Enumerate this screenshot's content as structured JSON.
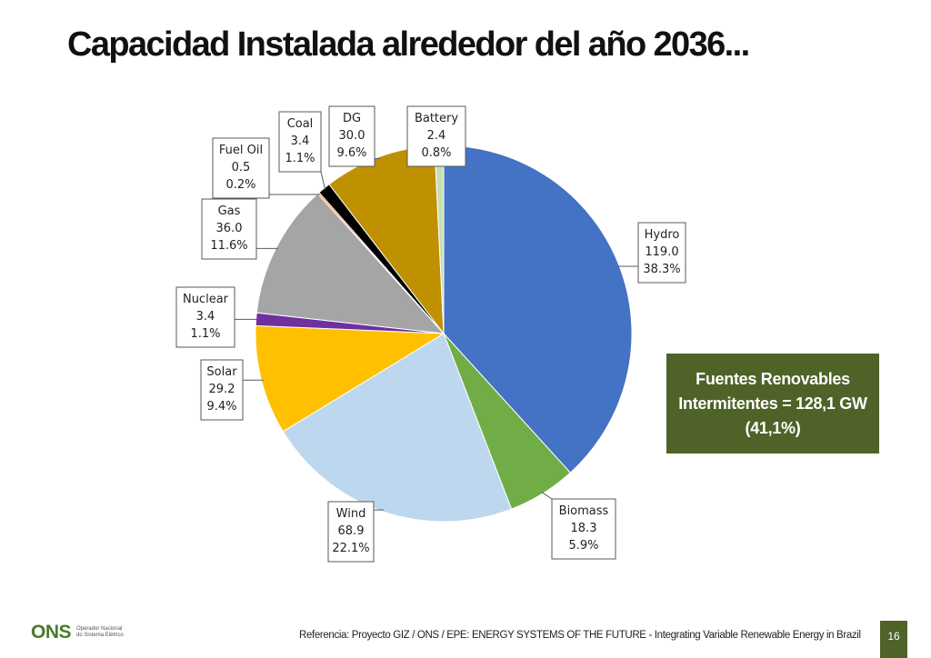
{
  "title": "Capacidad Instalada alrededor del año 2036...",
  "callout": {
    "line1": "Fuentes Renovables",
    "line2": "Intermitentes =  128,1 GW",
    "line3": "(41,1%)"
  },
  "footer": {
    "logo_text": "ONS",
    "logo_sub_1": "Operador Nacional",
    "logo_sub_2": "do Sistema Elétrico",
    "reference": "Referencia: Proyecto GIZ / ONS / EPE: ENERGY SYSTEMS OF THE FUTURE - Integrating Variable Renewable Energy in Brazil",
    "page_number": "16"
  },
  "chart_data": {
    "type": "pie",
    "title": "",
    "start_angle_deg": 0,
    "direction": "clockwise",
    "slices": [
      {
        "name": "Hydro",
        "value": 119.0,
        "percent": "38.3%",
        "value_label": "119.0",
        "color": "#4472c4"
      },
      {
        "name": "Biomass",
        "value": 18.3,
        "percent": "5.9%",
        "value_label": "18.3",
        "color": "#70ad47"
      },
      {
        "name": "Wind",
        "value": 68.9,
        "percent": "22.1%",
        "value_label": "68.9",
        "color": "#bdd7ee"
      },
      {
        "name": "Solar",
        "value": 29.2,
        "percent": "9.4%",
        "value_label": "29.2",
        "color": "#ffc000"
      },
      {
        "name": "Nuclear",
        "value": 3.4,
        "percent": "1.1%",
        "value_label": "3.4",
        "color": "#7030a0"
      },
      {
        "name": "Gas",
        "value": 36.0,
        "percent": "11.6%",
        "value_label": "36.0",
        "color": "#a5a5a5"
      },
      {
        "name": "Fuel Oil",
        "value": 0.5,
        "percent": "0.2%",
        "value_label": "0.5",
        "color": "#ed7d31"
      },
      {
        "name": "Coal",
        "value": 3.4,
        "percent": "1.1%",
        "value_label": "3.4",
        "color": "#000000"
      },
      {
        "name": "DG",
        "value": 30.0,
        "percent": "9.6%",
        "value_label": "30.0",
        "color": "#bf9000"
      },
      {
        "name": "Battery",
        "value": 2.4,
        "percent": "0.8%",
        "value_label": "2.4",
        "color": "#c5e0b4"
      }
    ]
  }
}
